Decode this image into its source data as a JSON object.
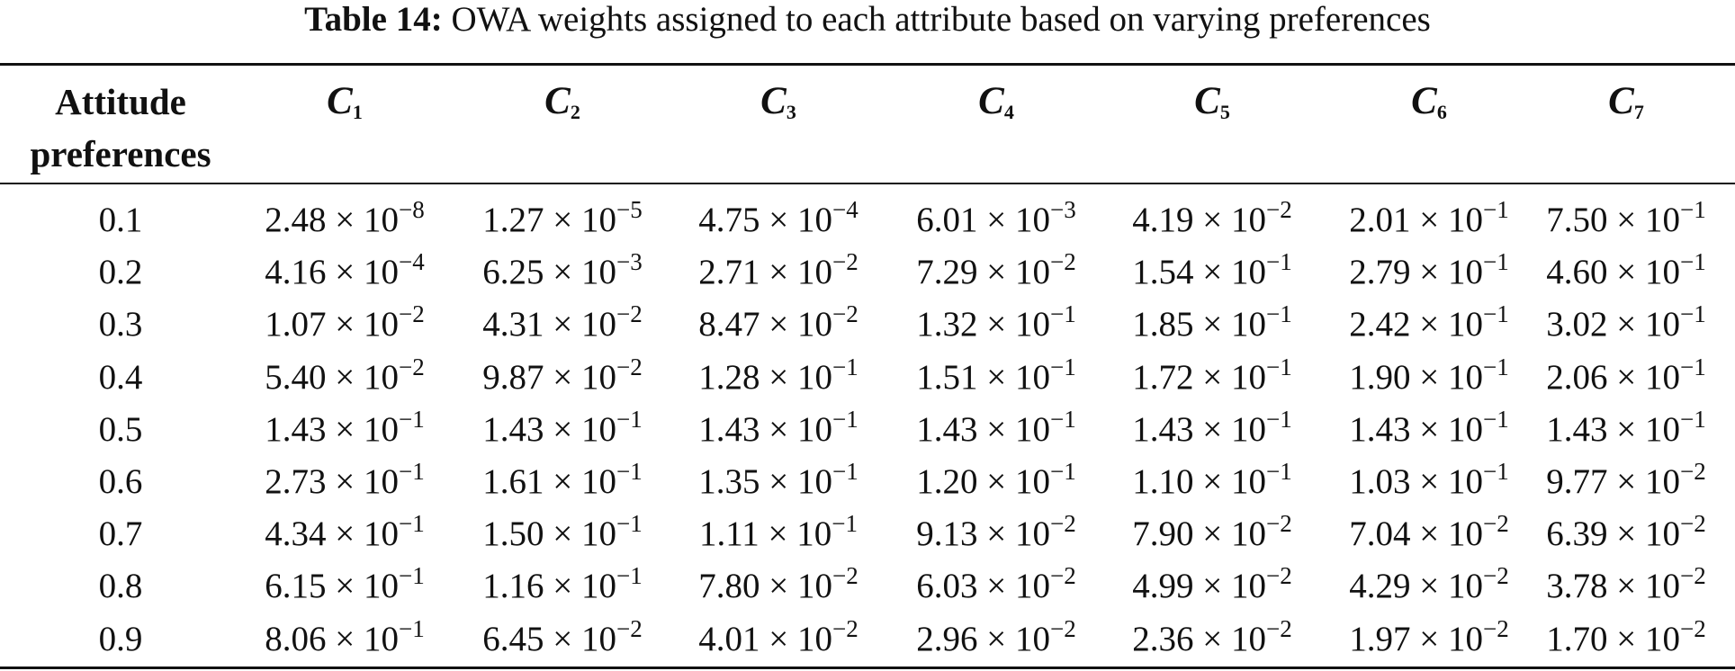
{
  "caption": {
    "label": "Table 14:",
    "text": " OWA weights assigned to each attribute based on varying preferences"
  },
  "header": {
    "attitude_line1": "Attitude",
    "attitude_line2": "preferences",
    "columns": [
      {
        "letter": "C",
        "sub": "1"
      },
      {
        "letter": "C",
        "sub": "2"
      },
      {
        "letter": "C",
        "sub": "3"
      },
      {
        "letter": "C",
        "sub": "4"
      },
      {
        "letter": "C",
        "sub": "5"
      },
      {
        "letter": "C",
        "sub": "6"
      },
      {
        "letter": "C",
        "sub": "7"
      }
    ]
  },
  "rows": [
    {
      "pref": "0.1",
      "cells": [
        {
          "m": "2.48 × 10",
          "e": "−8"
        },
        {
          "m": "1.27 × 10",
          "e": "−5"
        },
        {
          "m": "4.75 × 10",
          "e": "−4"
        },
        {
          "m": "6.01 × 10",
          "e": "−3"
        },
        {
          "m": "4.19 × 10",
          "e": "−2"
        },
        {
          "m": "2.01 × 10",
          "e": "−1"
        },
        {
          "m": "7.50 × 10",
          "e": "−1"
        }
      ]
    },
    {
      "pref": "0.2",
      "cells": [
        {
          "m": "4.16 × 10",
          "e": "−4"
        },
        {
          "m": "6.25 × 10",
          "e": "−3"
        },
        {
          "m": "2.71 × 10",
          "e": "−2"
        },
        {
          "m": "7.29 × 10",
          "e": "−2"
        },
        {
          "m": "1.54 × 10",
          "e": "−1"
        },
        {
          "m": "2.79 × 10",
          "e": "−1"
        },
        {
          "m": "4.60 × 10",
          "e": "−1"
        }
      ]
    },
    {
      "pref": "0.3",
      "cells": [
        {
          "m": "1.07 × 10",
          "e": "−2"
        },
        {
          "m": "4.31 × 10",
          "e": "−2"
        },
        {
          "m": "8.47 × 10",
          "e": "−2"
        },
        {
          "m": "1.32 × 10",
          "e": "−1"
        },
        {
          "m": "1.85 × 10",
          "e": "−1"
        },
        {
          "m": "2.42 × 10",
          "e": "−1"
        },
        {
          "m": "3.02 × 10",
          "e": "−1"
        }
      ]
    },
    {
      "pref": "0.4",
      "cells": [
        {
          "m": "5.40 × 10",
          "e": "−2"
        },
        {
          "m": "9.87 × 10",
          "e": "−2"
        },
        {
          "m": "1.28 × 10",
          "e": "−1"
        },
        {
          "m": "1.51 × 10",
          "e": "−1"
        },
        {
          "m": "1.72 × 10",
          "e": "−1"
        },
        {
          "m": "1.90 × 10",
          "e": "−1"
        },
        {
          "m": "2.06 × 10",
          "e": "−1"
        }
      ]
    },
    {
      "pref": "0.5",
      "cells": [
        {
          "m": "1.43 × 10",
          "e": "−1"
        },
        {
          "m": "1.43 × 10",
          "e": "−1"
        },
        {
          "m": "1.43 × 10",
          "e": "−1"
        },
        {
          "m": "1.43 × 10",
          "e": "−1"
        },
        {
          "m": "1.43 × 10",
          "e": "−1"
        },
        {
          "m": "1.43 × 10",
          "e": "−1"
        },
        {
          "m": "1.43 × 10",
          "e": "−1"
        }
      ]
    },
    {
      "pref": "0.6",
      "cells": [
        {
          "m": "2.73 × 10",
          "e": "−1"
        },
        {
          "m": "1.61 × 10",
          "e": "−1"
        },
        {
          "m": "1.35 × 10",
          "e": "−1"
        },
        {
          "m": "1.20 × 10",
          "e": "−1"
        },
        {
          "m": "1.10 × 10",
          "e": "−1"
        },
        {
          "m": "1.03 × 10",
          "e": "−1"
        },
        {
          "m": "9.77 × 10",
          "e": "−2"
        }
      ]
    },
    {
      "pref": "0.7",
      "cells": [
        {
          "m": "4.34 × 10",
          "e": "−1"
        },
        {
          "m": "1.50 × 10",
          "e": "−1"
        },
        {
          "m": "1.11 × 10",
          "e": "−1"
        },
        {
          "m": "9.13 × 10",
          "e": "−2"
        },
        {
          "m": "7.90 × 10",
          "e": "−2"
        },
        {
          "m": "7.04 × 10",
          "e": "−2"
        },
        {
          "m": "6.39 × 10",
          "e": "−2"
        }
      ]
    },
    {
      "pref": "0.8",
      "cells": [
        {
          "m": "6.15 × 10",
          "e": "−1"
        },
        {
          "m": "1.16 × 10",
          "e": "−1"
        },
        {
          "m": "7.80 × 10",
          "e": "−2"
        },
        {
          "m": "6.03 × 10",
          "e": "−2"
        },
        {
          "m": "4.99 × 10",
          "e": "−2"
        },
        {
          "m": "4.29 × 10",
          "e": "−2"
        },
        {
          "m": "3.78 × 10",
          "e": "−2"
        }
      ]
    },
    {
      "pref": "0.9",
      "cells": [
        {
          "m": "8.06 × 10",
          "e": "−1"
        },
        {
          "m": "6.45 × 10",
          "e": "−2"
        },
        {
          "m": "4.01 × 10",
          "e": "−2"
        },
        {
          "m": "2.96 × 10",
          "e": "−2"
        },
        {
          "m": "2.36 × 10",
          "e": "−2"
        },
        {
          "m": "1.97 × 10",
          "e": "−2"
        },
        {
          "m": "1.70 × 10",
          "e": "−2"
        }
      ]
    }
  ]
}
